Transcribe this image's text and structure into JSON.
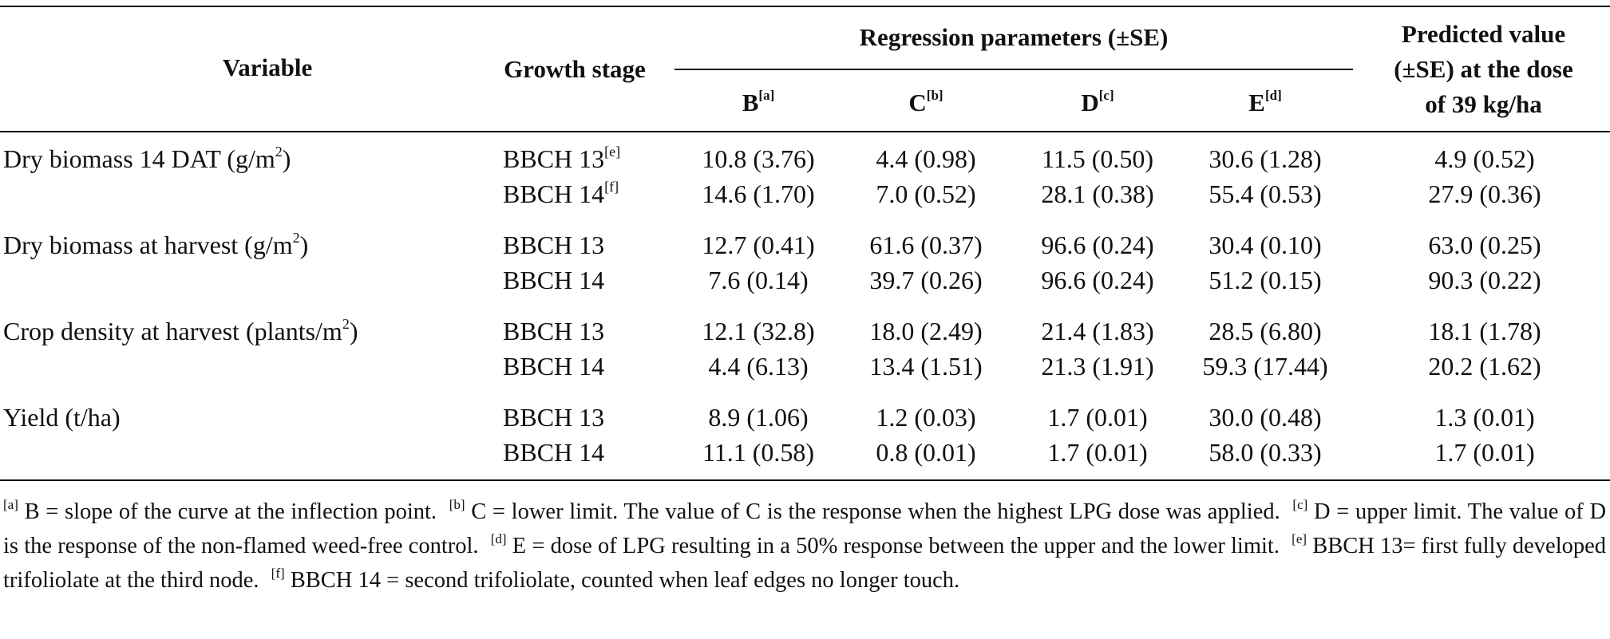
{
  "header": {
    "variable": "Variable",
    "growth_stage": "Growth stage",
    "regression_group": "Regression parameters (±SE)",
    "params": [
      {
        "letter": "B",
        "note": "[a]"
      },
      {
        "letter": "C",
        "note": "[b]"
      },
      {
        "letter": "D",
        "note": "[c]"
      },
      {
        "letter": "E",
        "note": "[d]"
      }
    ],
    "predicted_line1": "Predicted value",
    "predicted_line2": "(±SE) at the dose",
    "predicted_line3": "of 39 kg/ha"
  },
  "rows": [
    {
      "variable": "Dry biomass 14 DAT (g/m",
      "unit_sup": "2",
      "unit_close": ")",
      "stage": "BBCH 13",
      "stage_note": "[e]",
      "B": "10.8 (3.76)",
      "C": "4.4 (0.98)",
      "D": "11.5 (0.50)",
      "E": "30.6 (1.28)",
      "P": "4.9 (0.52)"
    },
    {
      "variable": "",
      "unit_sup": "",
      "unit_close": "",
      "stage": "BBCH 14",
      "stage_note": "[f]",
      "B": "14.6 (1.70)",
      "C": "7.0 (0.52)",
      "D": "28.1 (0.38)",
      "E": "55.4 (0.53)",
      "P": "27.9 (0.36)"
    },
    {
      "variable": "Dry biomass at harvest (g/m",
      "unit_sup": "2",
      "unit_close": ")",
      "stage": "BBCH 13",
      "stage_note": "",
      "B": "12.7 (0.41)",
      "C": "61.6 (0.37)",
      "D": "96.6 (0.24)",
      "E": "30.4 (0.10)",
      "P": "63.0 (0.25)"
    },
    {
      "variable": "",
      "unit_sup": "",
      "unit_close": "",
      "stage": "BBCH 14",
      "stage_note": "",
      "B": "7.6 (0.14)",
      "C": "39.7 (0.26)",
      "D": "96.6 (0.24)",
      "E": "51.2 (0.15)",
      "P": "90.3 (0.22)"
    },
    {
      "variable": "Crop density at harvest (plants/m",
      "unit_sup": "2",
      "unit_close": ")",
      "stage": "BBCH 13",
      "stage_note": "",
      "B": "12.1 (32.8)",
      "C": "18.0 (2.49)",
      "D": "21.4 (1.83)",
      "E": "28.5 (6.80)",
      "P": "18.1 (1.78)"
    },
    {
      "variable": "",
      "unit_sup": "",
      "unit_close": "",
      "stage": "BBCH 14",
      "stage_note": "",
      "B": "4.4 (6.13)",
      "C": "13.4 (1.51)",
      "D": "21.3 (1.91)",
      "E": "59.3 (17.44)",
      "P": "20.2 (1.62)"
    },
    {
      "variable": "Yield (t/ha)",
      "unit_sup": "",
      "unit_close": "",
      "stage": "BBCH 13",
      "stage_note": "",
      "B": "8.9 (1.06)",
      "C": "1.2 (0.03)",
      "D": "1.7 (0.01)",
      "E": "30.0 (0.48)",
      "P": "1.3 (0.01)"
    },
    {
      "variable": "",
      "unit_sup": "",
      "unit_close": "",
      "stage": "BBCH 14",
      "stage_note": "",
      "B": "11.1 (0.58)",
      "C": "0.8 (0.01)",
      "D": "1.7 (0.01)",
      "E": "58.0 (0.33)",
      "P": "1.7 (0.01)"
    }
  ],
  "footnotes": [
    {
      "mark": "[a]",
      "text": "B = slope of the curve at the inflection point."
    },
    {
      "mark": "[b]",
      "text": "C = lower limit. The value of C is the response when the highest LPG dose was applied."
    },
    {
      "mark": "[c]",
      "text": "D = upper limit. The value of D is the response of the non-flamed weed-free control."
    },
    {
      "mark": "[d]",
      "text": "E = dose of LPG resulting in a 50% response between the upper and the lower limit."
    },
    {
      "mark": "[e]",
      "text": "BBCH 13= first fully developed trifoliolate at the third node."
    },
    {
      "mark": "[f]",
      "text": "BBCH 14 = second trifoliolate, counted when leaf edges no longer touch."
    }
  ]
}
